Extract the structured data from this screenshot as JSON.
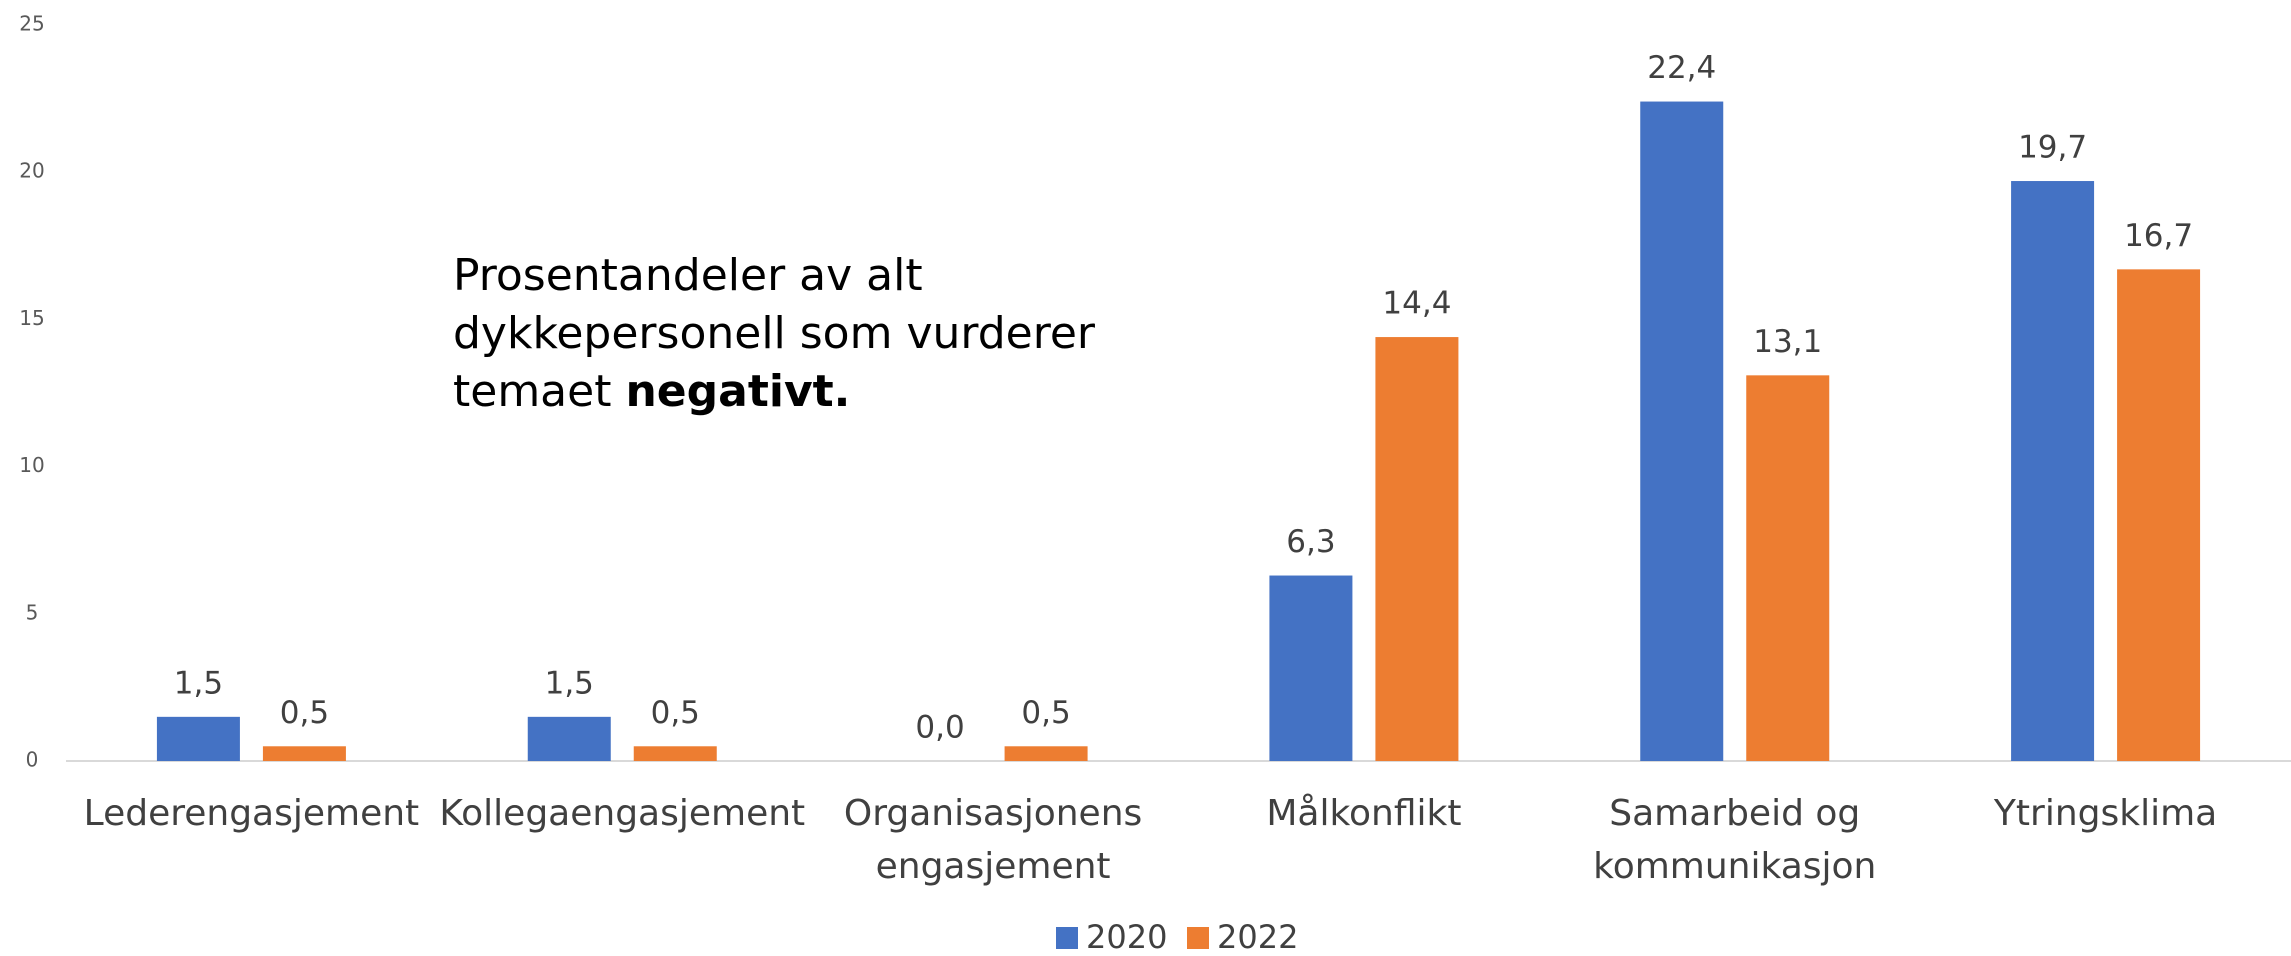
{
  "chart_data": {
    "type": "bar",
    "categories": [
      [
        "Lederengasjement"
      ],
      [
        "Kollegaengasjement"
      ],
      [
        "Organisasjonens",
        "engasjement"
      ],
      [
        "Målkonflikt"
      ],
      [
        "Samarbeid og",
        "kommunikasjon"
      ],
      [
        "Ytringsklima"
      ]
    ],
    "series": [
      {
        "name": "2020",
        "color": "#4472c4",
        "values": [
          1.5,
          1.5,
          0.0,
          6.3,
          22.4,
          19.7
        ],
        "value_labels": [
          "1,5",
          "1,5",
          "0,0",
          "6,3",
          "22,4",
          "19,7"
        ]
      },
      {
        "name": "2022",
        "color": "#ed7d31",
        "values": [
          0.5,
          0.5,
          0.5,
          14.4,
          13.1,
          16.7
        ],
        "value_labels": [
          "0,5",
          "0,5",
          "0,5",
          "14,4",
          "13,1",
          "16,7"
        ]
      }
    ],
    "ylim": [
      0,
      25
    ],
    "yticks": [
      0,
      5,
      10,
      15,
      20,
      25
    ],
    "grid": false,
    "legend": "bottom",
    "annotation": {
      "lines": [
        "Prosentandeler av alt",
        "dykkepersonell som vurderer"
      ],
      "last_line": "temaet",
      "bold": "negativt."
    }
  }
}
